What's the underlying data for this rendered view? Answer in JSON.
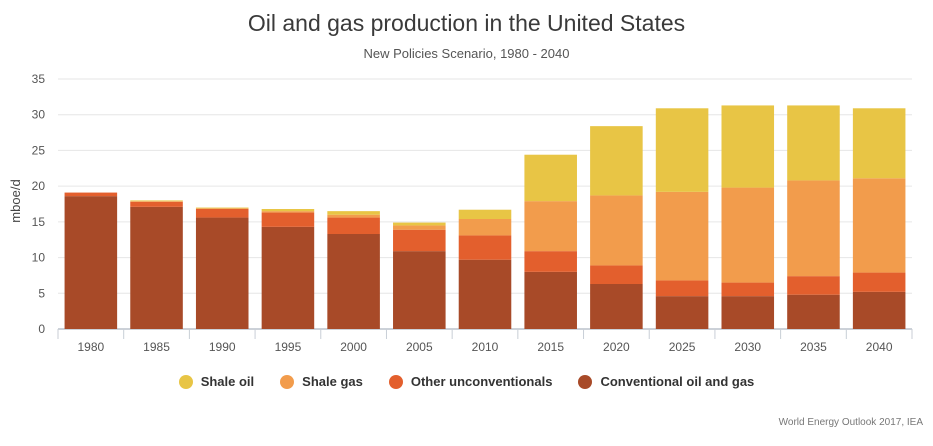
{
  "chart_data": {
    "type": "bar",
    "stacked": true,
    "title": "Oil and gas production in the United States",
    "subtitle": "New Policies Scenario, 1980 - 2040",
    "xlabel": "",
    "ylabel": "mboe/d",
    "ylim": [
      0,
      35
    ],
    "yticks": [
      0,
      5,
      10,
      15,
      20,
      25,
      30,
      35
    ],
    "grid": true,
    "legend_position": "bottom",
    "categories": [
      "1980",
      "1985",
      "1990",
      "1995",
      "2000",
      "2005",
      "2010",
      "2015",
      "2020",
      "2025",
      "2030",
      "2035",
      "2040"
    ],
    "series": [
      {
        "name": "Conventional oil and gas",
        "color": "#a84a28",
        "values": [
          18.6,
          17.1,
          15.6,
          14.3,
          13.3,
          10.9,
          9.7,
          8.0,
          6.3,
          4.6,
          4.6,
          4.8,
          5.2
        ]
      },
      {
        "name": "Other unconventionals",
        "color": "#e35f2d",
        "values": [
          0.5,
          0.7,
          1.2,
          2.0,
          2.3,
          3.0,
          3.4,
          2.9,
          2.6,
          2.2,
          1.9,
          2.6,
          2.7
        ]
      },
      {
        "name": "Shale gas",
        "color": "#f29c4c",
        "values": [
          0.0,
          0.1,
          0.1,
          0.2,
          0.4,
          0.6,
          2.3,
          7.0,
          9.8,
          12.4,
          13.3,
          13.4,
          13.2
        ]
      },
      {
        "name": "Shale oil",
        "color": "#e8c545",
        "values": [
          0.0,
          0.1,
          0.1,
          0.3,
          0.5,
          0.4,
          1.3,
          6.5,
          9.7,
          11.7,
          11.5,
          10.5,
          9.8
        ]
      }
    ],
    "legend_order": [
      "Shale oil",
      "Shale gas",
      "Other unconventionals",
      "Conventional oil and gas"
    ]
  },
  "source": "World Energy Outlook 2017, IEA"
}
